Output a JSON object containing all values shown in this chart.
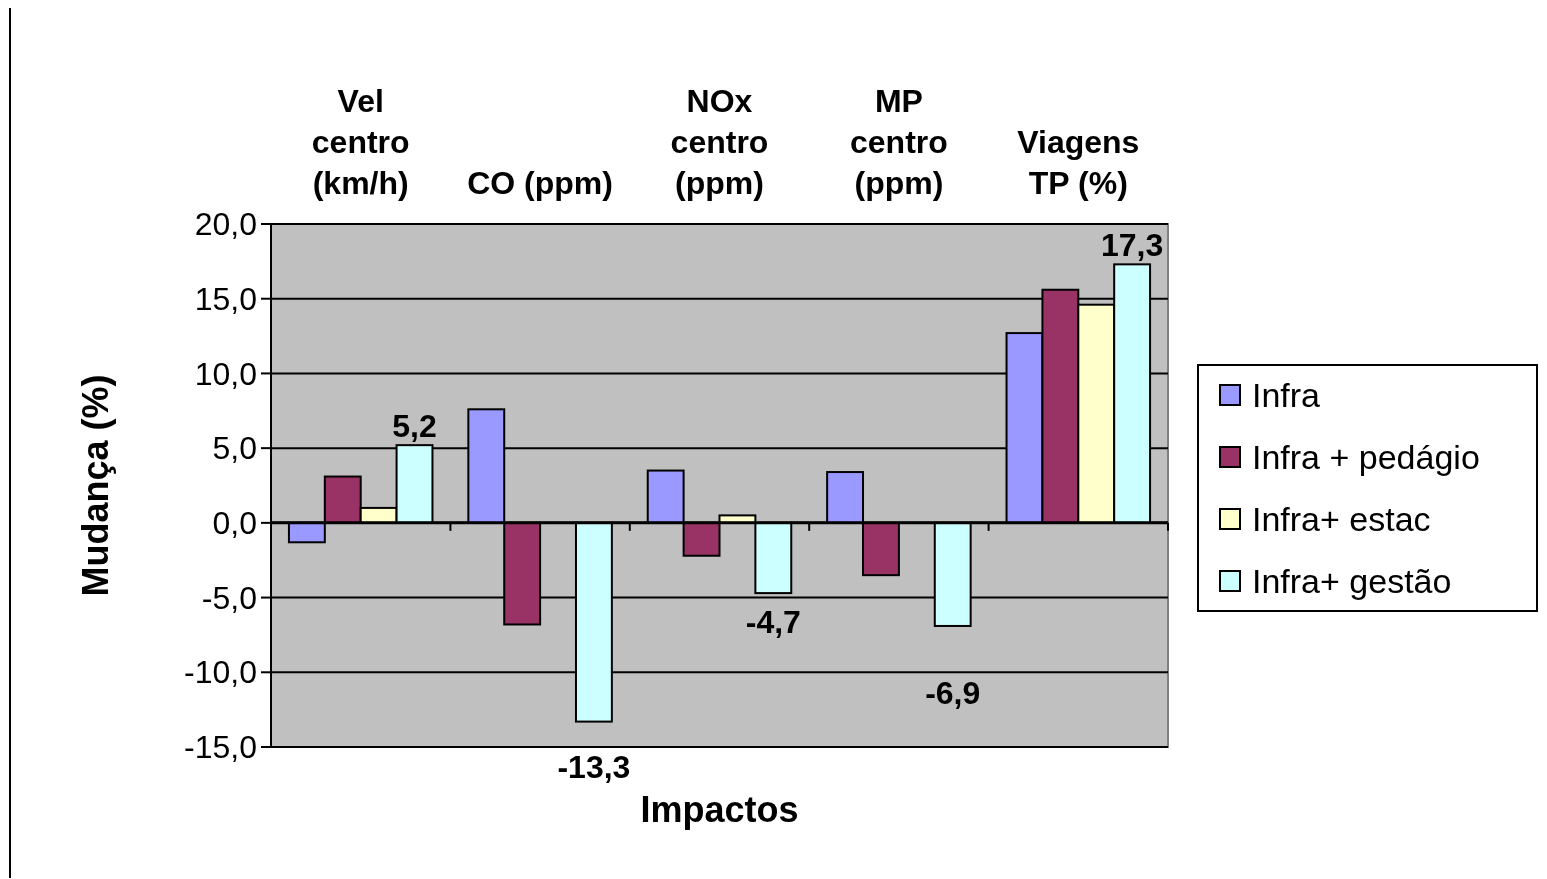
{
  "chart_data": {
    "type": "bar",
    "xlabel": "Impactos",
    "ylabel": "Mudança (%)",
    "categories": [
      "Vel centro (km/h)",
      "CO (ppm)",
      "NOx centro (ppm)",
      "MP centro (ppm)",
      "Viagens TP (%)"
    ],
    "series": [
      {
        "name": "Infra",
        "color": "#9999ff",
        "values": [
          -1.3,
          7.6,
          3.5,
          3.4,
          12.7
        ]
      },
      {
        "name": "Infra + pedágio",
        "color": "#993366",
        "values": [
          3.1,
          -6.8,
          -2.2,
          -3.5,
          15.6
        ]
      },
      {
        "name": "Infra+ estac",
        "color": "#ffffcc",
        "values": [
          1.0,
          null,
          0.5,
          null,
          14.6
        ]
      },
      {
        "name": "Infra+ gestão",
        "color": "#ccffff",
        "values": [
          5.2,
          -13.3,
          -4.7,
          -6.9,
          17.3
        ],
        "value_labels": [
          "5,2",
          "-13,3",
          "-4,7",
          "-6,9",
          "17,3"
        ]
      }
    ],
    "ylim": [
      -15,
      20
    ],
    "yticks": [
      {
        "value": -15,
        "label": "-15,0"
      },
      {
        "value": -10,
        "label": "-10,0"
      },
      {
        "value": -5,
        "label": "-5,0"
      },
      {
        "value": 0,
        "label": "0,0"
      },
      {
        "value": 5,
        "label": "5,0"
      },
      {
        "value": 10,
        "label": "10,0"
      },
      {
        "value": 15,
        "label": "15,0"
      },
      {
        "value": 20,
        "label": "20,0"
      }
    ],
    "grid": "y",
    "legend": "right"
  }
}
